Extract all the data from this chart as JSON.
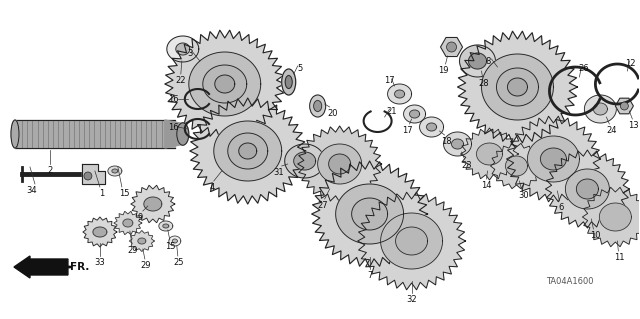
{
  "bg_color": "#ffffff",
  "diagram_id": "TA04A1600",
  "fr_label": "FR.",
  "fig_w": 6.4,
  "fig_h": 3.19,
  "dpi": 100,
  "xlim": [
    0,
    640
  ],
  "ylim": [
    0,
    319
  ],
  "parts_color": "#222222",
  "label_color": "#111111",
  "label_fs": 6.0,
  "gear_fill": "#c8c8c8",
  "gear_fill2": "#b0b0b0",
  "ring_fill": "#d8d8d8",
  "shaft_fill": "#aaaaaa"
}
